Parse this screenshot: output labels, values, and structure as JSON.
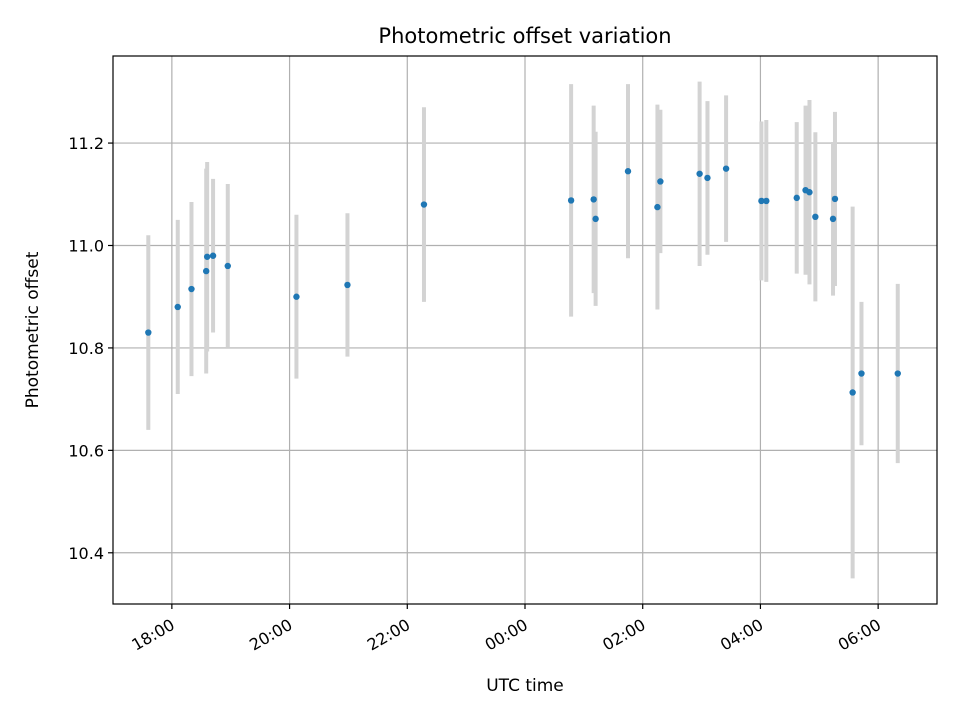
{
  "chart_data": {
    "type": "scatter",
    "title": "Photometric offset variation",
    "xlabel": "UTC time",
    "ylabel": "Photometric offset",
    "x_unit": "UTC time (two-day night, HH:MM)",
    "x_ticks": [
      "18:00",
      "20:00",
      "22:00",
      "00:00",
      "02:00",
      "04:00",
      "06:00"
    ],
    "y_ticks": [
      "10.4",
      "10.6",
      "10.8",
      "11.0",
      "11.2"
    ],
    "xlim": [
      "17:00",
      "07:00"
    ],
    "ylim": [
      10.3,
      11.37
    ],
    "grid": true,
    "point_color": "#1f77b4",
    "errorbar_color": "#d3d3d3",
    "points": [
      {
        "x": "17:36",
        "y": 10.83,
        "err": 0.19
      },
      {
        "x": "18:06",
        "y": 10.88,
        "err": 0.17
      },
      {
        "x": "18:20",
        "y": 10.915,
        "err": 0.17
      },
      {
        "x": "18:35",
        "y": 10.95,
        "err": 0.2
      },
      {
        "x": "18:36",
        "y": 10.978,
        "err": 0.185
      },
      {
        "x": "18:42",
        "y": 10.98,
        "err": 0.15
      },
      {
        "x": "18:57",
        "y": 10.96,
        "err": 0.16
      },
      {
        "x": "20:07",
        "y": 10.9,
        "err": 0.16
      },
      {
        "x": "20:59",
        "y": 10.923,
        "err": 0.14
      },
      {
        "x": "22:17",
        "y": 11.08,
        "err": 0.19
      },
      {
        "x": "00:47",
        "y": 11.088,
        "err": 0.227
      },
      {
        "x": "01:10",
        "y": 11.09,
        "err": 0.183
      },
      {
        "x": "01:12",
        "y": 11.052,
        "err": 0.17
      },
      {
        "x": "01:45",
        "y": 11.145,
        "err": 0.17
      },
      {
        "x": "02:15",
        "y": 11.075,
        "err": 0.2
      },
      {
        "x": "02:18",
        "y": 11.125,
        "err": 0.14
      },
      {
        "x": "02:58",
        "y": 11.14,
        "err": 0.18
      },
      {
        "x": "03:06",
        "y": 11.132,
        "err": 0.15
      },
      {
        "x": "03:25",
        "y": 11.15,
        "err": 0.143
      },
      {
        "x": "04:01",
        "y": 11.087,
        "err": 0.155
      },
      {
        "x": "04:06",
        "y": 11.087,
        "err": 0.158
      },
      {
        "x": "04:37",
        "y": 11.093,
        "err": 0.148
      },
      {
        "x": "04:46",
        "y": 11.108,
        "err": 0.165
      },
      {
        "x": "04:50",
        "y": 11.104,
        "err": 0.18
      },
      {
        "x": "04:56",
        "y": 11.056,
        "err": 0.165
      },
      {
        "x": "05:14",
        "y": 11.052,
        "err": 0.15
      },
      {
        "x": "05:16",
        "y": 11.091,
        "err": 0.17
      },
      {
        "x": "05:34",
        "y": 10.713,
        "err": 0.363
      },
      {
        "x": "05:43",
        "y": 10.75,
        "err": 0.14
      },
      {
        "x": "06:20",
        "y": 10.75,
        "err": 0.175
      }
    ]
  }
}
